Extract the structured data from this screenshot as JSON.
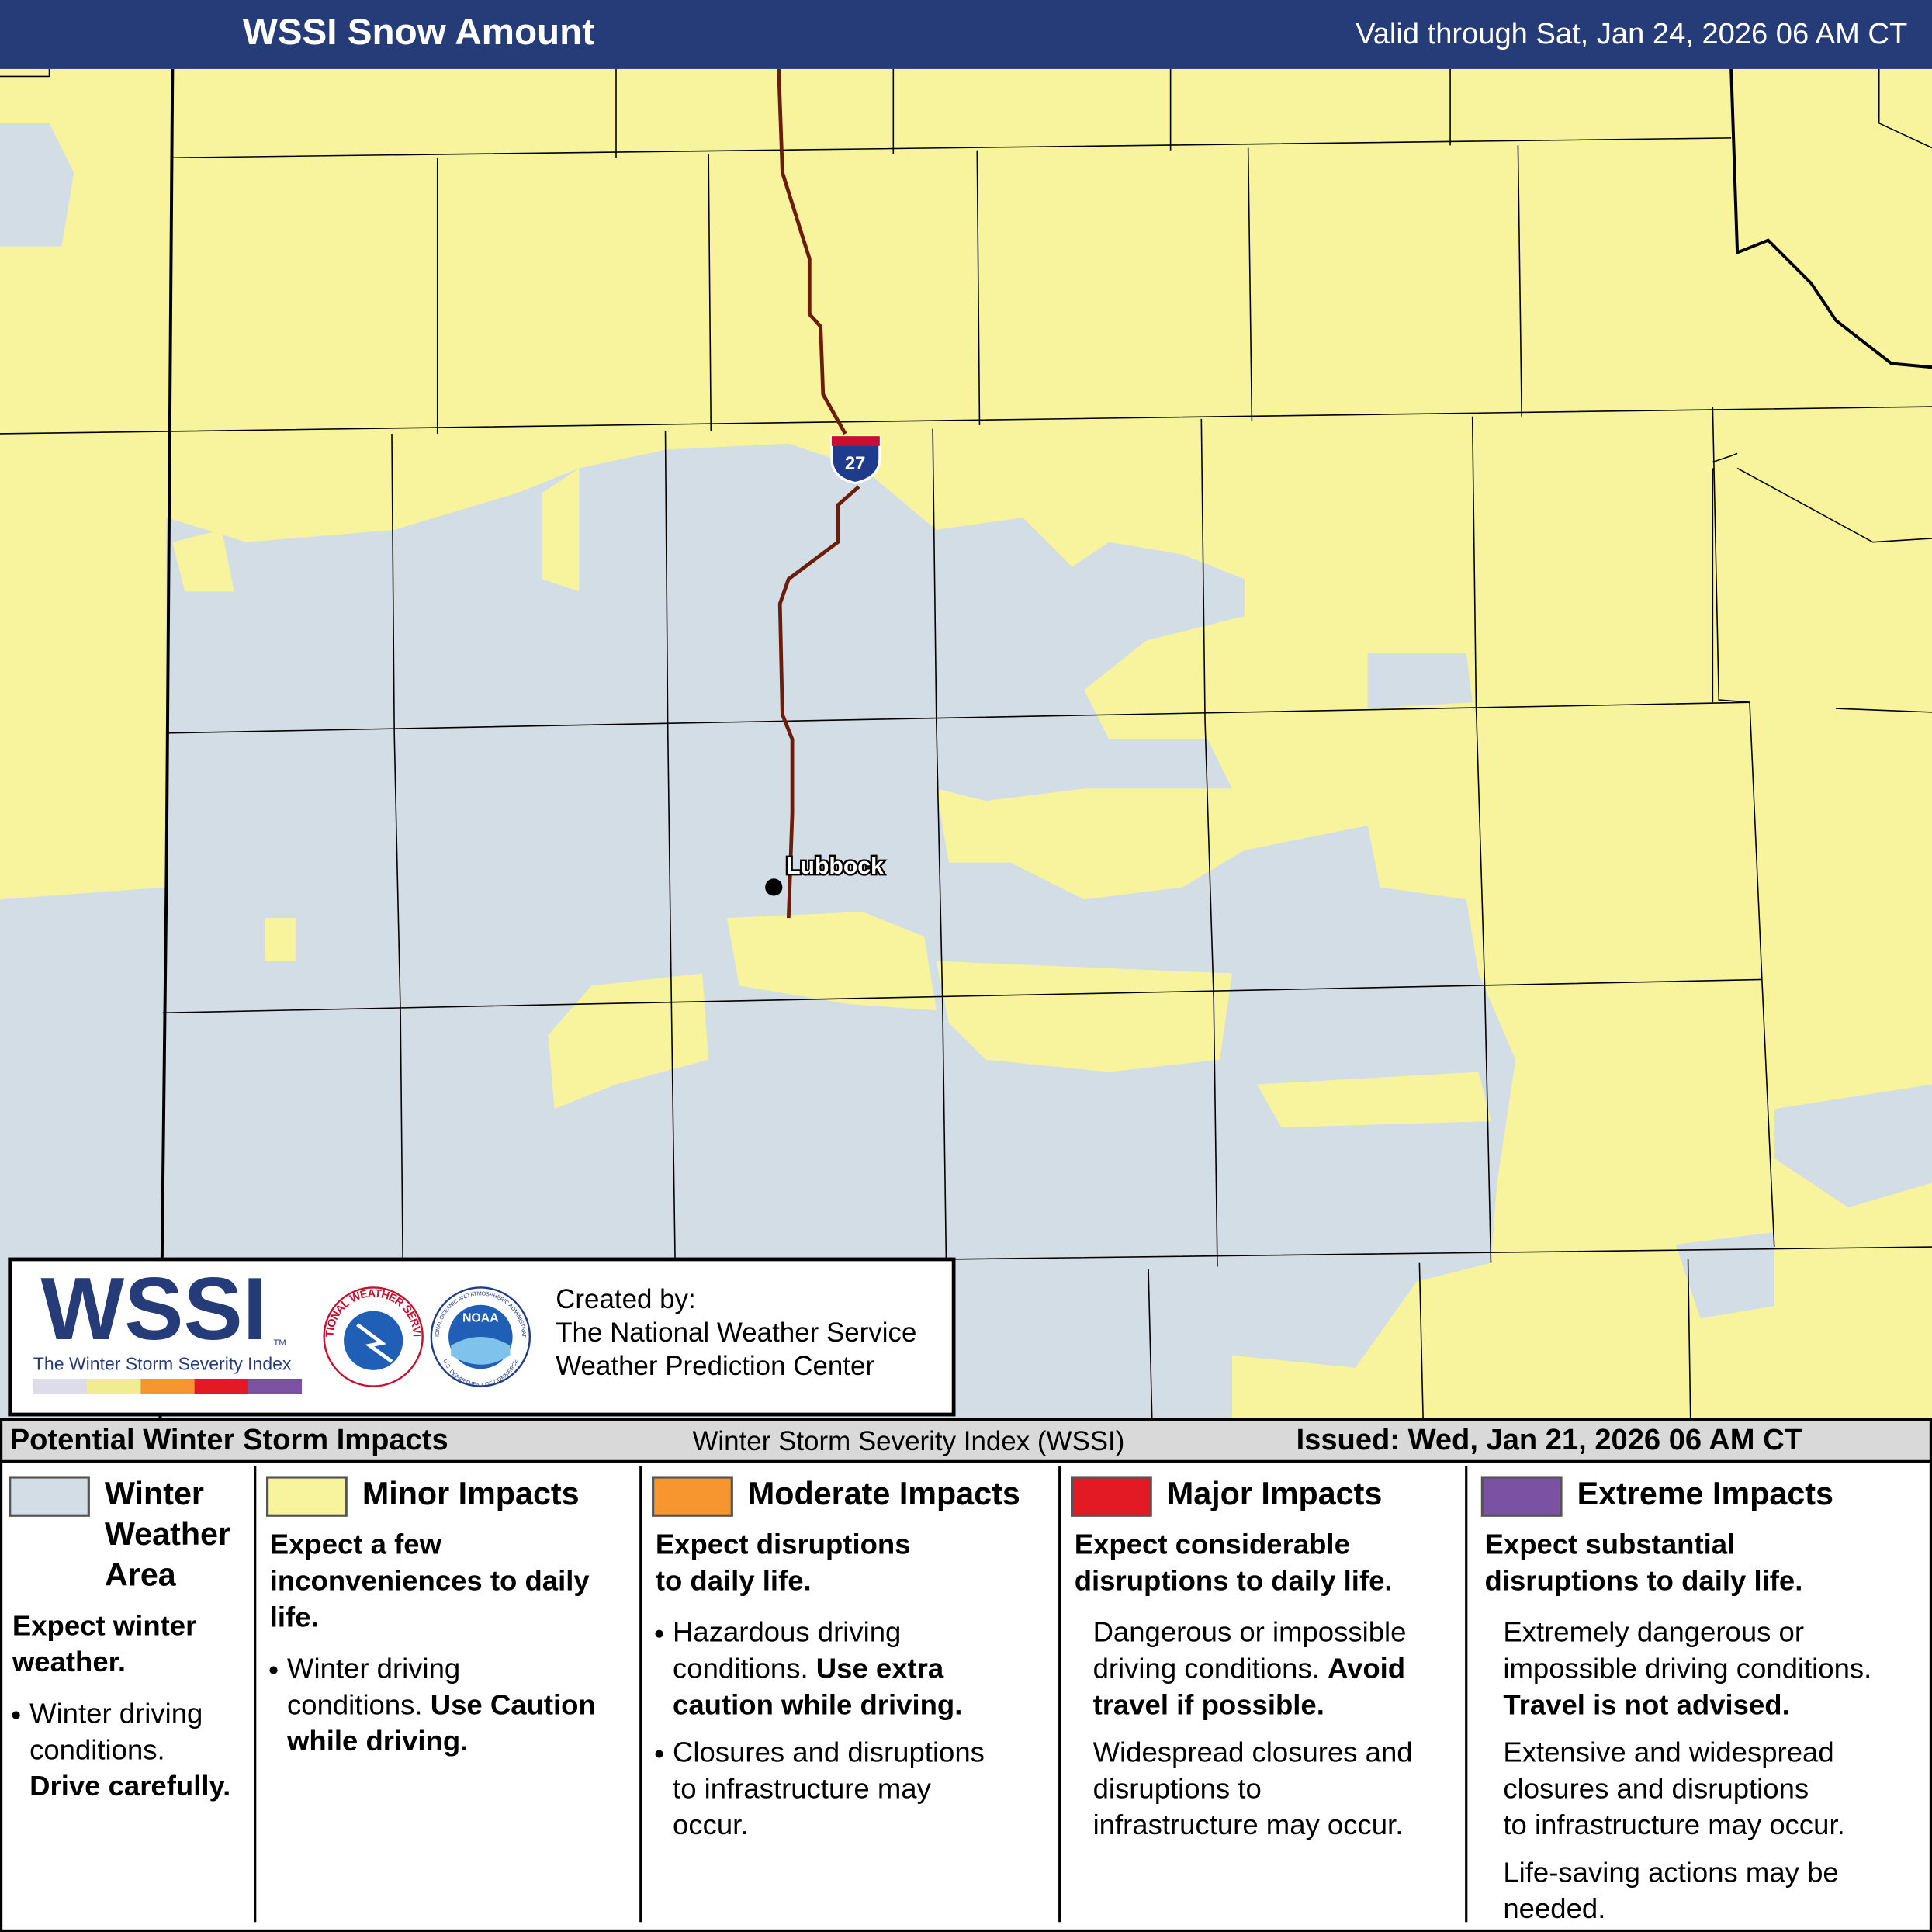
{
  "header": {
    "title": "WSSI Snow Amount",
    "valid": "Valid through Sat, Jan 24, 2026 06 AM CT"
  },
  "map": {
    "city": "Lubbock",
    "highway": "27"
  },
  "logo_box": {
    "logo": "WSSI",
    "tm": "TM",
    "logo_subtitle": "The Winter Storm Severity Index",
    "nws": "NATIONAL WEATHER SERVICE",
    "noaa": "NOAA",
    "noaa_ring": "NATIONAL OCEANIC AND ATMOSPHERIC ADMINISTRATION",
    "doc_ring": "U.S. DEPARTMENT OF COMMERCE",
    "credit": [
      "Created by:",
      "The National Weather Service",
      "Weather Prediction Center"
    ]
  },
  "legend": {
    "title": "Potential Winter Storm Impacts",
    "subtitle": "Winter Storm Severity Index (WSSI)",
    "issued": "Issued: Wed, Jan 21, 2026 06 AM CT",
    "categories": [
      {
        "name": [
          "Winter",
          "Weather",
          "Area"
        ],
        "color": "#d3dde6",
        "bulleted": true,
        "summary": [
          "Expect winter",
          "weather."
        ],
        "details": [
          [
            [
              {
                "text": "Winter driving"
              }
            ],
            [
              {
                "text": "conditions."
              }
            ],
            [
              {
                "text": "Drive carefully.",
                "bold": true
              }
            ]
          ]
        ]
      },
      {
        "name": [
          "Minor Impacts"
        ],
        "color": "#f8f49e",
        "bulleted": true,
        "summary": [
          "Expect a few",
          "inconveniences to daily",
          "life."
        ],
        "details": [
          [
            [
              {
                "text": "Winter driving"
              }
            ],
            [
              {
                "text": "conditions. "
              },
              {
                "text": "Use Caution",
                "bold": true
              }
            ],
            [
              {
                "text": "while driving.",
                "bold": true
              }
            ]
          ]
        ]
      },
      {
        "name": [
          "Moderate Impacts"
        ],
        "color": "#f7962e",
        "bulleted": true,
        "summary": [
          "Expect disruptions",
          "to daily life."
        ],
        "details": [
          [
            [
              {
                "text": "Hazardous driving"
              }
            ],
            [
              {
                "text": "conditions. "
              },
              {
                "text": "Use extra",
                "bold": true
              }
            ],
            [
              {
                "text": "caution while driving.",
                "bold": true
              }
            ]
          ],
          [
            [
              {
                "text": "Closures and disruptions"
              }
            ],
            [
              {
                "text": "to infrastructure may"
              }
            ],
            [
              {
                "text": "occur."
              }
            ]
          ]
        ]
      },
      {
        "name": [
          "Major Impacts"
        ],
        "color": "#e31a23",
        "bulleted": false,
        "summary": [
          "Expect considerable",
          "disruptions to daily life."
        ],
        "details": [
          [
            [
              {
                "text": "Dangerous or impossible"
              }
            ],
            [
              {
                "text": "driving conditions. "
              },
              {
                "text": "Avoid",
                "bold": true
              }
            ],
            [
              {
                "text": "travel if possible.",
                "bold": true
              }
            ]
          ],
          [
            [
              {
                "text": "Widespread closures and"
              }
            ],
            [
              {
                "text": "disruptions to"
              }
            ],
            [
              {
                "text": "infrastructure may occur."
              }
            ]
          ]
        ]
      },
      {
        "name": [
          "Extreme Impacts"
        ],
        "color": "#7b52a3",
        "bulleted": false,
        "summary": [
          "Expect substantial",
          "disruptions to daily life."
        ],
        "details": [
          [
            [
              {
                "text": "Extremely dangerous or"
              }
            ],
            [
              {
                "text": "impossible driving conditions."
              }
            ],
            [
              {
                "text": "Travel is not advised.",
                "bold": true
              }
            ]
          ],
          [
            [
              {
                "text": "Extensive and widespread"
              }
            ],
            [
              {
                "text": "closures and disruptions"
              }
            ],
            [
              {
                "text": "to infrastructure may occur."
              }
            ]
          ],
          [
            [
              {
                "text": "Life-saving actions may be"
              }
            ],
            [
              {
                "text": "needed."
              }
            ]
          ]
        ]
      }
    ]
  }
}
